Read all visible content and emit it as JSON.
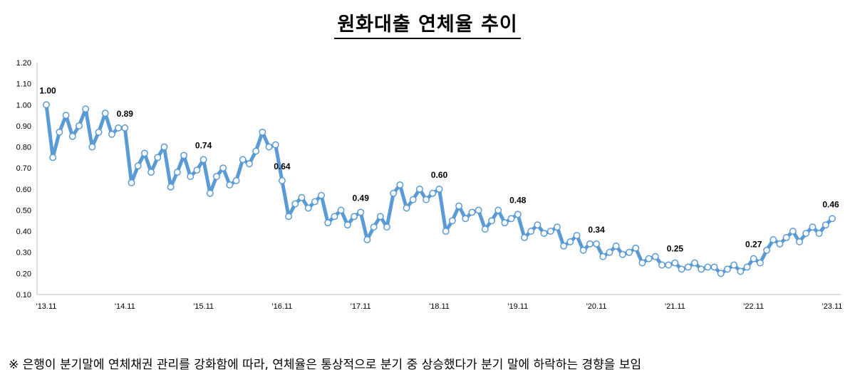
{
  "chart_data": {
    "type": "line",
    "title": "원화대출 연체율 추이",
    "ylim": [
      0.1,
      1.2
    ],
    "yticks": [
      "0.10",
      "0.20",
      "0.30",
      "0.40",
      "0.50",
      "0.60",
      "0.70",
      "0.80",
      "0.90",
      "1.00",
      "1.10",
      "1.20"
    ],
    "xticks": [
      "'13.11",
      "'14.11",
      "'15.11",
      "'16.11",
      "'17.11",
      "'18.11",
      "'19.11",
      "'20.11",
      "'21.11",
      "'22.11",
      "'23.11"
    ],
    "grid": false,
    "series_color": "#5b9bd5",
    "values": [
      1.0,
      0.75,
      0.87,
      0.95,
      0.85,
      0.9,
      0.98,
      0.8,
      0.87,
      0.96,
      0.86,
      0.89,
      0.89,
      0.63,
      0.71,
      0.77,
      0.68,
      0.75,
      0.8,
      0.61,
      0.68,
      0.76,
      0.66,
      0.69,
      0.74,
      0.58,
      0.66,
      0.7,
      0.62,
      0.64,
      0.74,
      0.72,
      0.78,
      0.87,
      0.8,
      0.81,
      0.64,
      0.47,
      0.53,
      0.56,
      0.51,
      0.54,
      0.57,
      0.44,
      0.47,
      0.5,
      0.43,
      0.47,
      0.49,
      0.36,
      0.42,
      0.47,
      0.42,
      0.58,
      0.62,
      0.51,
      0.55,
      0.6,
      0.55,
      0.58,
      0.6,
      0.4,
      0.45,
      0.52,
      0.46,
      0.49,
      0.5,
      0.41,
      0.45,
      0.5,
      0.44,
      0.46,
      0.48,
      0.37,
      0.4,
      0.43,
      0.39,
      0.4,
      0.42,
      0.33,
      0.35,
      0.38,
      0.31,
      0.34,
      0.34,
      0.28,
      0.3,
      0.33,
      0.29,
      0.3,
      0.32,
      0.25,
      0.27,
      0.28,
      0.24,
      0.24,
      0.25,
      0.22,
      0.23,
      0.25,
      0.22,
      0.23,
      0.23,
      0.2,
      0.22,
      0.24,
      0.21,
      0.23,
      0.27,
      0.25,
      0.31,
      0.36,
      0.34,
      0.37,
      0.4,
      0.35,
      0.39,
      0.42,
      0.39,
      0.43,
      0.46
    ],
    "data_labels": [
      {
        "index": 0,
        "text": "1.00"
      },
      {
        "index": 12,
        "text": "0.89"
      },
      {
        "index": 24,
        "text": "0.74"
      },
      {
        "index": 36,
        "text": "0.64"
      },
      {
        "index": 48,
        "text": "0.49"
      },
      {
        "index": 60,
        "text": "0.60"
      },
      {
        "index": 72,
        "text": "0.48"
      },
      {
        "index": 84,
        "text": "0.34"
      },
      {
        "index": 96,
        "text": "0.25"
      },
      {
        "index": 108,
        "text": "0.27"
      },
      {
        "index": 120,
        "text": "0.46"
      }
    ]
  },
  "note": "※ 은행이 분기말에 연체채권 관리를 강화함에 따라, 연체율은 통상적으로 분기 중 상승했다가 분기 말에 하락하는 경향을 보임"
}
